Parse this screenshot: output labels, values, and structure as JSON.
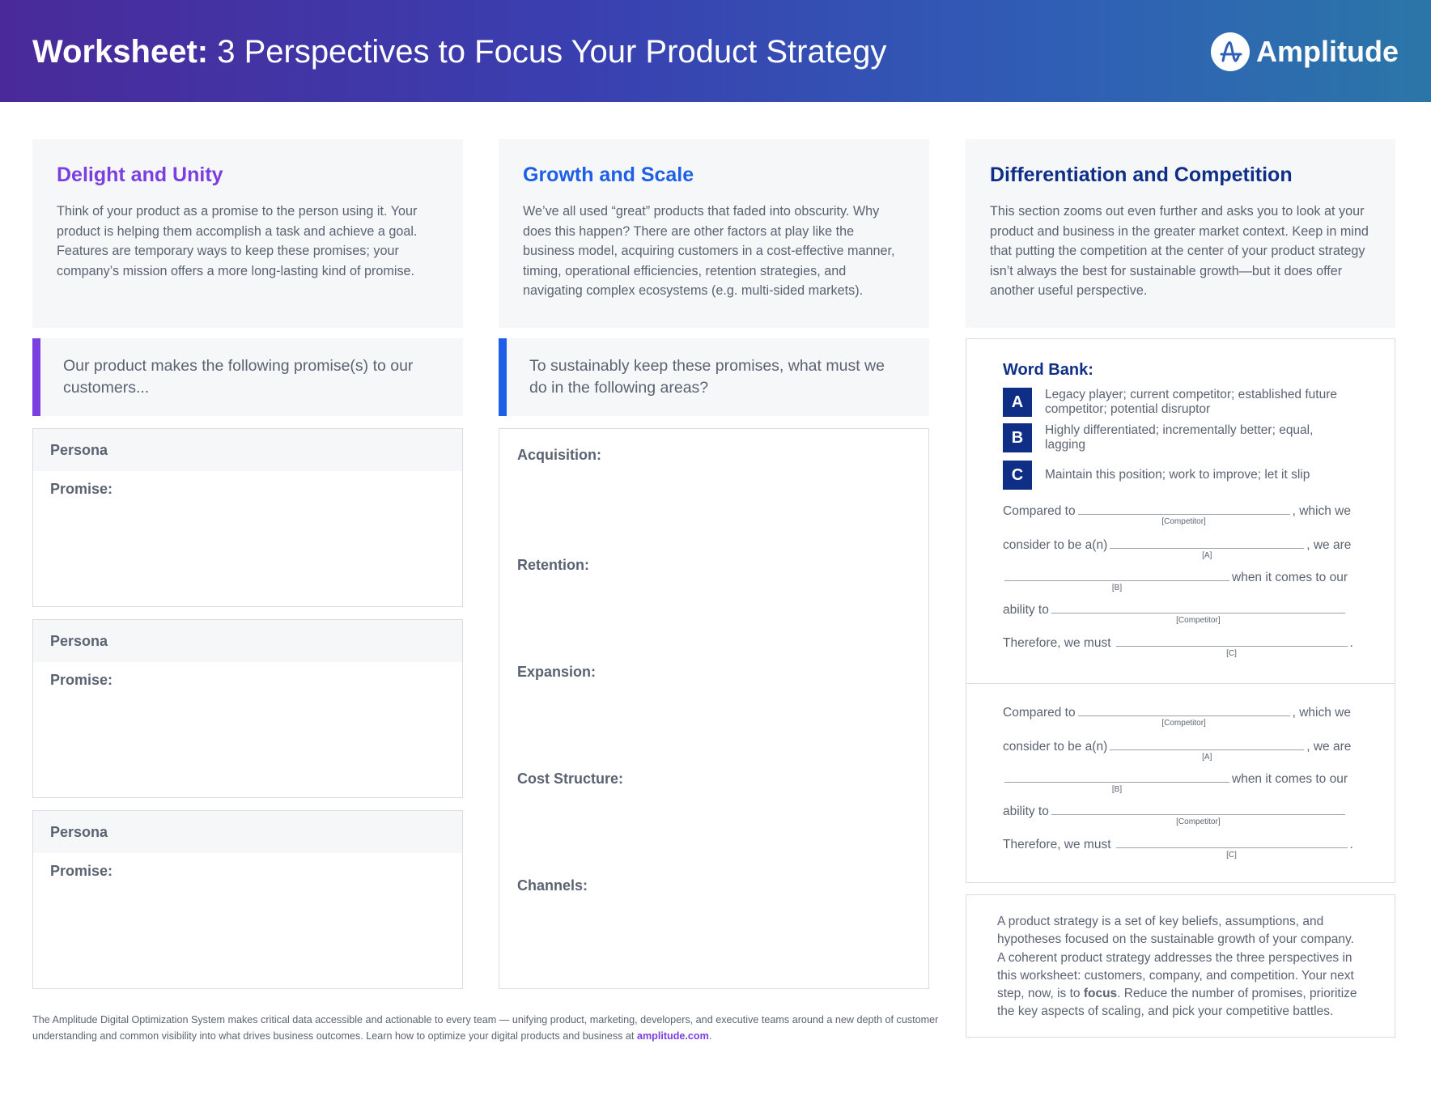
{
  "header": {
    "title_bold": "Worksheet:",
    "title_rest": " 3 Perspectives to Focus Your Product Strategy",
    "logo_text": "Amplitude"
  },
  "colors": {
    "purple": "#7b3fe0",
    "blue": "#1e5fe8",
    "navy": "#0f2f86"
  },
  "col1": {
    "heading": "Delight and Unity",
    "body": "Think of your product as a promise to the person using it. Your product is helping them accomplish a task and achieve a goal. Features are temporary ways to keep these promises; your company’s mission offers a more long-lasting kind of promise.",
    "prompt": "Our product makes the following promise(s) to our customers...",
    "cards": [
      {
        "persona": "Persona",
        "promise": "Promise:"
      },
      {
        "persona": "Persona",
        "promise": "Promise:"
      },
      {
        "persona": "Persona",
        "promise": "Promise:"
      }
    ]
  },
  "col2": {
    "heading": "Growth and Scale",
    "body": "We’ve all used “great” products that faded into obscurity. Why does this happen? There are other factors at play like the business model, acquiring customers in a cost-effective manner, timing, operational efficiencies, retention strategies, and navigating complex ecosystems (e.g. multi-sided markets).",
    "prompt": "To sustainably keep these promises, what must we do in the following areas?",
    "areas": [
      "Acquisition:",
      "Retention:",
      "Expansion:",
      "Cost Structure:",
      "Channels:"
    ]
  },
  "col3": {
    "heading": "Differentiation and Competition",
    "body": "This section zooms out even further and asks you to look at your product and business in the greater market context. Keep in mind that putting the competition at the center of your product strategy isn’t always the best for sustainable growth—but it does offer another useful perspective.",
    "word_bank": {
      "title": "Word Bank:",
      "items": [
        {
          "letter": "A",
          "text": "Legacy player; current competitor; established future competitor; potential disruptor"
        },
        {
          "letter": "B",
          "text": "Highly differentiated; incrementally better; equal, lagging"
        },
        {
          "letter": "C",
          "text": "Maintain this position; work to improve; let it slip"
        }
      ]
    },
    "fill": {
      "compared": "Compared to",
      "which_we": ", which we",
      "consider": "consider to be a(n)",
      "we_are": ", we are",
      "when": "when it comes to our",
      "ability": "ability to",
      "therefore": "Therefore, we must",
      "period": ".",
      "competitor": "[Competitor]",
      "a": "[A]",
      "b": "[B]",
      "c": "[C]"
    },
    "summary": {
      "pre": "A product strategy is a set of key beliefs, assumptions, and hypotheses focused on the sustainable growth of your company. A coherent product strategy addresses the three perspectives in this worksheet: customers, company, and competition. Your next step, now, is to ",
      "bold": "focus",
      "post": ". Reduce the number of promises, prioritize the key aspects of scaling, and pick your competitive battles."
    }
  },
  "footer": {
    "text": "The Amplitude Digital Optimization System makes critical data accessible and actionable to every team — unifying product, marketing, developers, and executive teams around a new depth of customer understanding and common visibility into what drives business outcomes. Learn how to optimize your digital products and business at ",
    "link": "amplitude.com",
    "end": "."
  }
}
